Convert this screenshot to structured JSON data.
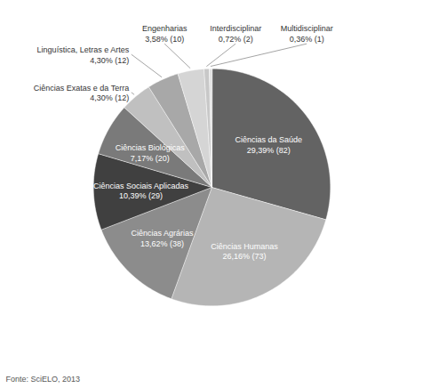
{
  "chart_data": {
    "type": "pie",
    "categories": [
      "Ciências da Saúde",
      "Ciências Humanas",
      "Ciências Agrárias",
      "Ciências Sociais Aplicadas",
      "Ciências Biológicas",
      "Ciências Exatas e da Terra",
      "Linguística, Letras e Artes",
      "Engenharias",
      "Interdisciplinar",
      "Multidisciplinar"
    ],
    "values": [
      82,
      73,
      38,
      29,
      20,
      12,
      12,
      10,
      2,
      1
    ],
    "value_labels": [
      "29,39% (82)",
      "26,16% (73)",
      "13,62% (38)",
      "10,39% (29)",
      "7,17% (20)",
      "4,30% (12)",
      "4,30% (12)",
      "3,58% (10)",
      "0,72% (2)",
      "0,36% (1)"
    ],
    "colors": [
      "#636363",
      "#b5b5b5",
      "#8c8c8c",
      "#404040",
      "#7a7a7a",
      "#c0c0c0",
      "#a8a8a8",
      "#d5d5d5",
      "#c8c8c8",
      "#e2e2e2"
    ],
    "data_labels": true,
    "annotations": [
      "Fonte: SciELO, 2013"
    ]
  }
}
